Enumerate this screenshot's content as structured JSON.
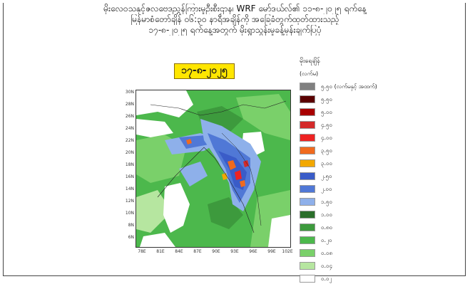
{
  "header": {
    "line1": "မိုးလေဝသနှင့်ဇလဗေဒညွှန်ကြားမှုဦးစီးဌာန၊ WRF မော်ဒယ်လ်၏ ၁၁-၈-၂၀၂၅ ရက်နေ့",
    "line2": "မြန်မာစံတော်ချိန် ၀၆:၃၀ နာရီအချိန်ကို အခြေခံတွက်ထုတ်ထားသည့်",
    "line3": "၁၇-၈-၂၀၂၅ ရက်နေ့အတွက် မိုးရွာသွန်းမှုခန့်မှန်းချက်ပြပုံ"
  },
  "forecast_date": "၁၇-၈-၂၀၂၅",
  "map": {
    "lat_labels": [
      "30N",
      "28N",
      "26N",
      "24N",
      "22N",
      "20N",
      "18N",
      "16N",
      "14N",
      "12N",
      "10N",
      "8N",
      "6N"
    ],
    "lon_labels": [
      "78E",
      "81E",
      "84E",
      "87E",
      "90E",
      "93E",
      "96E",
      "99E",
      "102E"
    ]
  },
  "legend": {
    "title": "မိုးရေချိန်",
    "unit": "(လက်မ)",
    "items": [
      {
        "label": "၅.၅၀ (လက်မနှင့် အထက်)",
        "color": "#808080"
      },
      {
        "label": "၅.၅၀",
        "color": "#5a0000"
      },
      {
        "label": "၅.၀၀",
        "color": "#a80000"
      },
      {
        "label": "၄.၅၀",
        "color": "#d42a2a"
      },
      {
        "label": "၄.၀၀",
        "color": "#ee2222"
      },
      {
        "label": "၃.၅၀",
        "color": "#f06a1e"
      },
      {
        "label": "၃.၀၀",
        "color": "#f2a800"
      },
      {
        "label": "၂.၅၀",
        "color": "#3a5cc8"
      },
      {
        "label": "၂.၀၀",
        "color": "#5078d6"
      },
      {
        "label": "၁.၅၀",
        "color": "#8eb0ea"
      },
      {
        "label": "၁.၀၀",
        "color": "#2a6e2a"
      },
      {
        "label": "၀.၈၀",
        "color": "#3d9a3d"
      },
      {
        "label": "၀.၂၀",
        "color": "#4cb84c"
      },
      {
        "label": "၀.၀၈",
        "color": "#7ad06a"
      },
      {
        "label": "၀.၀၄",
        "color": "#b6e6a0"
      },
      {
        "label": "၀.၀၂",
        "color": "#ffffff"
      }
    ]
  }
}
